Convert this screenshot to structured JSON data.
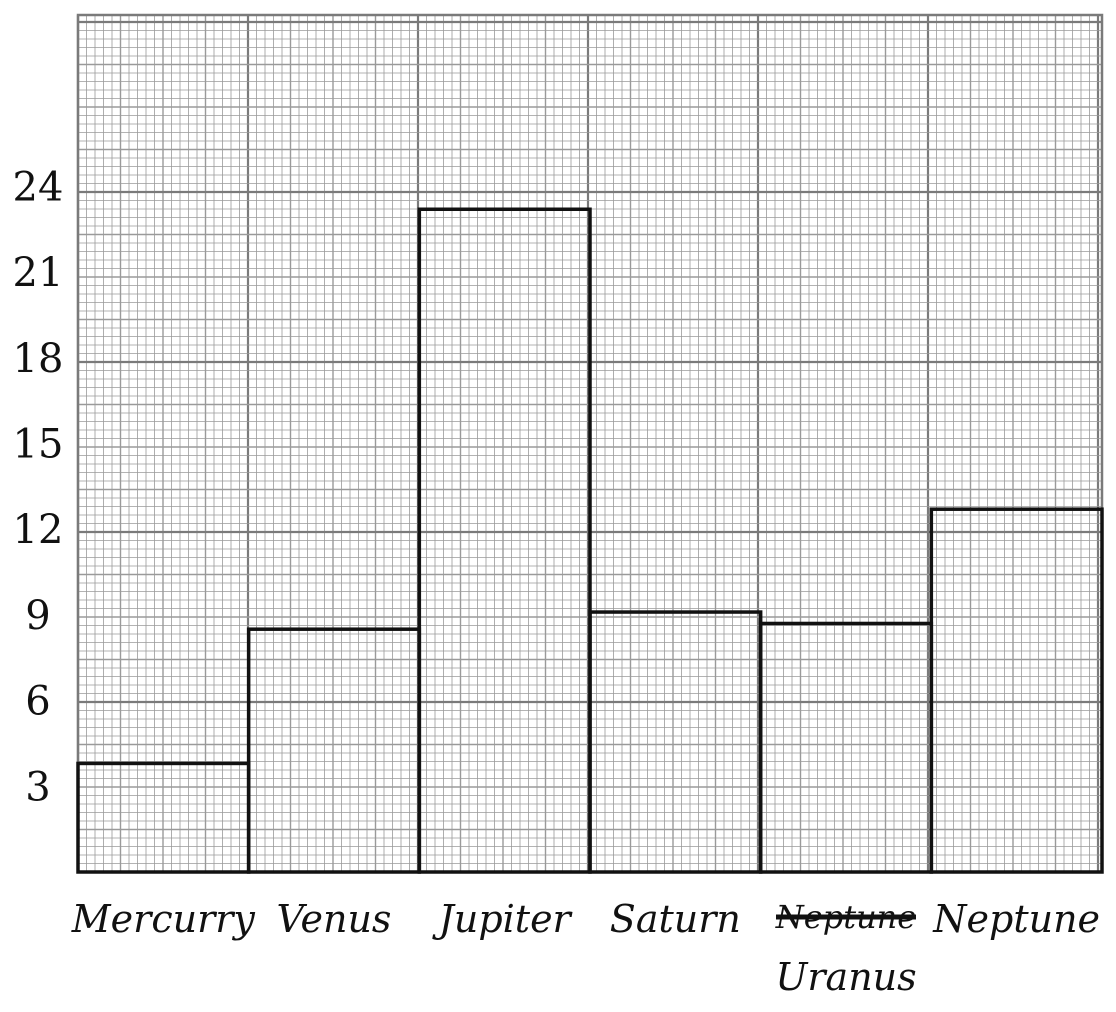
{
  "chart_data": {
    "type": "bar",
    "title": "",
    "xlabel": "",
    "ylabel": "",
    "categories": [
      "Mercurry",
      "Venus",
      "Jupiter",
      "Saturn",
      "Uranus",
      "Neptune"
    ],
    "values": [
      3.8,
      8.5,
      23.2,
      9.1,
      8.7,
      12.7
    ],
    "ylim": [
      0,
      30
    ],
    "yticks": [
      3,
      6,
      9,
      12,
      15,
      18,
      21,
      24
    ],
    "ytick_labels": [
      "3",
      "6",
      "9",
      "12",
      "15",
      "18",
      "21",
      "24"
    ],
    "grid": true,
    "struck_out_label": "Neptune",
    "colors": {
      "bar_edge": "#111111",
      "grid_fine": "#9a9a9a",
      "grid_major": "#7a7a7a",
      "background": "#ffffff"
    }
  }
}
